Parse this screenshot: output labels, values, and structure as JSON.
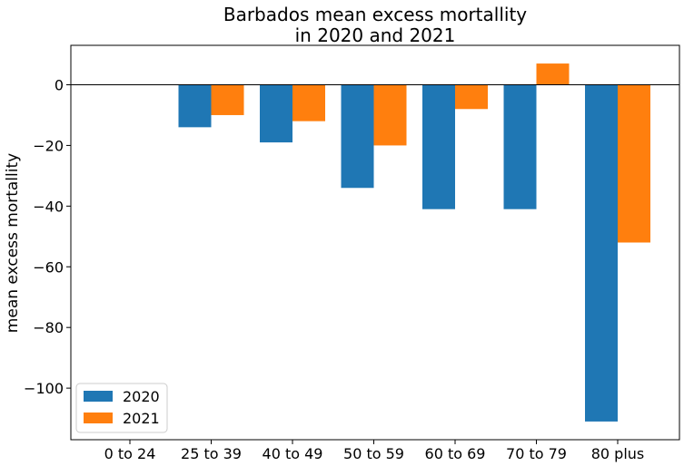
{
  "chart_data": {
    "type": "bar",
    "title_line1": "Barbados mean excess mortallity",
    "title_line2": "in 2020 and 2021",
    "xlabel": "",
    "ylabel": "mean excess mortallity",
    "categories": [
      "0 to 24",
      "25 to 39",
      "40 to 49",
      "50 to 59",
      "60 to 69",
      "70 to 79",
      "80 plus"
    ],
    "series": [
      {
        "name": "2020",
        "color": "#1f77b4",
        "values": [
          0,
          -14,
          -19,
          -34,
          -41,
          -41,
          -111
        ]
      },
      {
        "name": "2021",
        "color": "#ff7f0e",
        "values": [
          0,
          -10,
          -12,
          -20,
          -8,
          7,
          -52
        ]
      }
    ],
    "ylim": [
      -117,
      13
    ],
    "yticks": [
      0,
      -20,
      -40,
      -60,
      -80,
      -100
    ],
    "ytick_labels": [
      "0",
      "−20",
      "−40",
      "−60",
      "−80",
      "−100"
    ],
    "zero_line": true,
    "grid": false,
    "legend_position": "lower-left"
  }
}
